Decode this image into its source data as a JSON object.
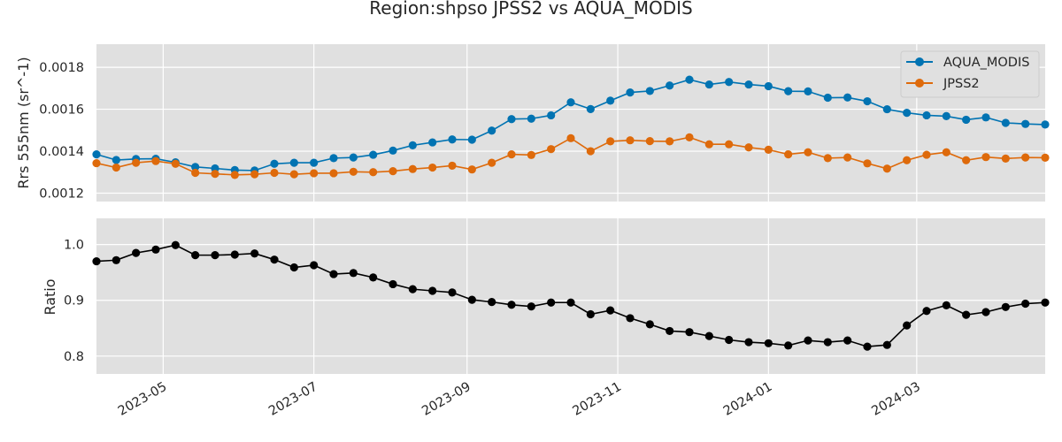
{
  "chart_data": [
    {
      "type": "line",
      "title": "Region:shpso JPSS2 vs AQUA_MODIS",
      "ylabel": "Rrs 555nm (sr^-1)",
      "ylim": [
        0.00116,
        0.00191
      ],
      "yticks": [
        0.0012,
        0.0014,
        0.0016,
        0.0018
      ],
      "ytick_labels": [
        "0.0012",
        "0.0014",
        "0.0016",
        "0.0018"
      ],
      "grid": true,
      "legend": "top-right",
      "x": [
        "2023-04-04",
        "2023-04-12",
        "2023-04-20",
        "2023-04-28",
        "2023-05-06",
        "2023-05-14",
        "2023-05-22",
        "2023-05-30",
        "2023-06-07",
        "2023-06-15",
        "2023-06-23",
        "2023-07-01",
        "2023-07-09",
        "2023-07-17",
        "2023-07-25",
        "2023-08-02",
        "2023-08-10",
        "2023-08-18",
        "2023-08-26",
        "2023-09-03",
        "2023-09-11",
        "2023-09-19",
        "2023-09-27",
        "2023-10-05",
        "2023-10-13",
        "2023-10-21",
        "2023-10-29",
        "2023-11-06",
        "2023-11-14",
        "2023-11-22",
        "2023-11-30",
        "2023-12-08",
        "2023-12-16",
        "2023-12-24",
        "2024-01-01",
        "2024-01-09",
        "2024-01-17",
        "2024-01-25",
        "2024-02-02",
        "2024-02-10",
        "2024-02-18",
        "2024-02-26",
        "2024-03-05",
        "2024-03-13",
        "2024-03-21",
        "2024-03-29",
        "2024-04-06",
        "2024-04-14",
        "2024-04-22"
      ],
      "series": [
        {
          "name": "AQUA_MODIS",
          "color": "#0173b2",
          "values": [
            0.001385,
            0.001358,
            0.001363,
            0.001364,
            0.001347,
            0.001325,
            0.001318,
            0.00131,
            0.001308,
            0.00134,
            0.001345,
            0.001345,
            0.001367,
            0.00137,
            0.001383,
            0.001403,
            0.001428,
            0.001442,
            0.001456,
            0.001455,
            0.001498,
            0.001553,
            0.001555,
            0.001571,
            0.001633,
            0.001601,
            0.001641,
            0.00168,
            0.001687,
            0.001713,
            0.001741,
            0.001718,
            0.00173,
            0.001718,
            0.00171,
            0.001686,
            0.001685,
            0.001655,
            0.001656,
            0.001638,
            0.0016,
            0.001583,
            0.001571,
            0.001567,
            0.00155,
            0.001561,
            0.001535,
            0.00153,
            0.001527
          ]
        },
        {
          "name": "JPSS2",
          "color": "#de6a0b",
          "values": [
            0.001343,
            0.001322,
            0.001345,
            0.001353,
            0.00134,
            0.001297,
            0.001292,
            0.001287,
            0.00129,
            0.001297,
            0.00129,
            0.001295,
            0.001295,
            0.001302,
            0.0013,
            0.001305,
            0.001315,
            0.001322,
            0.001331,
            0.001313,
            0.001345,
            0.001385,
            0.001382,
            0.00141,
            0.001462,
            0.0014,
            0.001447,
            0.001452,
            0.001448,
            0.001447,
            0.001466,
            0.001433,
            0.001433,
            0.001418,
            0.001407,
            0.001385,
            0.001395,
            0.001367,
            0.00137,
            0.001342,
            0.001317,
            0.001357,
            0.001383,
            0.001395,
            0.001357,
            0.001372,
            0.001365,
            0.00137,
            0.001369
          ]
        }
      ]
    },
    {
      "type": "line",
      "ylabel": "Ratio",
      "ylim": [
        0.768,
        1.047
      ],
      "yticks": [
        0.8,
        0.9,
        1.0
      ],
      "ytick_labels": [
        "0.8",
        "0.9",
        "1.0"
      ],
      "grid": true,
      "series": [
        {
          "color": "#000000",
          "values": [
            0.97,
            0.972,
            0.985,
            0.991,
            0.999,
            0.981,
            0.981,
            0.982,
            0.984,
            0.973,
            0.959,
            0.963,
            0.947,
            0.949,
            0.941,
            0.929,
            0.92,
            0.917,
            0.914,
            0.901,
            0.897,
            0.892,
            0.889,
            0.896,
            0.896,
            0.875,
            0.882,
            0.868,
            0.857,
            0.845,
            0.843,
            0.836,
            0.829,
            0.825,
            0.823,
            0.819,
            0.828,
            0.825,
            0.828,
            0.817,
            0.82,
            0.855,
            0.881,
            0.891,
            0.874,
            0.879,
            0.888,
            0.894,
            0.896
          ]
        }
      ]
    }
  ],
  "xaxis": {
    "xlim": [
      "2023-04-04",
      "2024-04-22"
    ],
    "ticks": [
      "2023-05-01",
      "2023-07-01",
      "2023-09-01",
      "2023-11-01",
      "2024-01-01",
      "2024-03-01"
    ],
    "tick_labels": [
      "2023-05",
      "2023-07",
      "2023-09",
      "2023-11",
      "2024-01",
      "2024-03"
    ]
  }
}
